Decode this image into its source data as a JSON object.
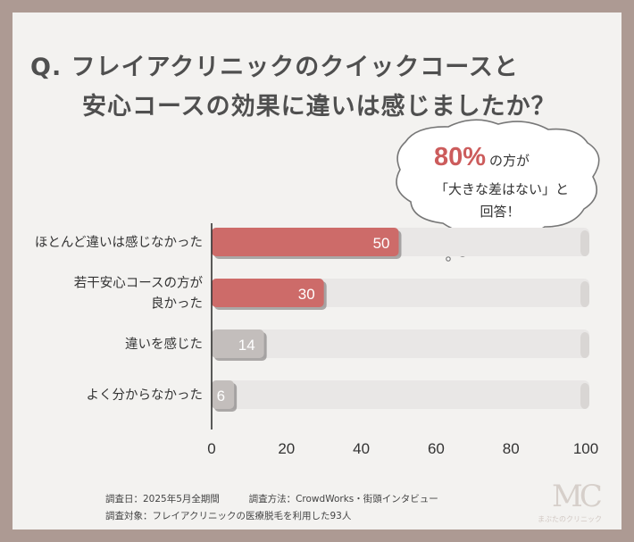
{
  "question": {
    "line1": "Q. フレイアクリニックのクイックコースと",
    "line2": "安心コースの効果に違いは感じましたか？"
  },
  "callout": {
    "percent": "80%",
    "line1_suffix": "の方が",
    "line2": "「大きな差はない」と",
    "line3": "回答！"
  },
  "colors": {
    "highlight": "#cd6b69",
    "neutral": "#c3bebc",
    "track": "#e9e7e6",
    "accent_text": "#cc5c5c"
  },
  "chart_data": {
    "type": "bar",
    "orientation": "horizontal",
    "categories": [
      {
        "lines": [
          "ほとんど違いは感じなかった"
        ]
      },
      {
        "lines": [
          "若干安心コースの方が",
          "良かった"
        ]
      },
      {
        "lines": [
          "違いを感じた"
        ]
      },
      {
        "lines": [
          "よく分からなかった"
        ]
      }
    ],
    "values": [
      50,
      30,
      14,
      6
    ],
    "value_labels": [
      "50",
      "30",
      "14",
      "6"
    ],
    "highlight": [
      true,
      true,
      false,
      false
    ],
    "xlim": [
      0,
      100
    ],
    "xticks": [
      0,
      20,
      40,
      60,
      80,
      100
    ],
    "xtick_labels": [
      "0",
      "20",
      "40",
      "60",
      "80",
      "100"
    ],
    "title": "",
    "xlabel": "",
    "ylabel": ""
  },
  "footer": {
    "survey_date": "調査日：2025年5月全期間",
    "survey_method": "調査方法：CrowdWorks・街頭インタビュー",
    "survey_target": "調査対象：フレイアクリニックの医療脱毛を利用した93人"
  },
  "logo": {
    "mark": "MC",
    "name": "まぶたのクリニック"
  }
}
